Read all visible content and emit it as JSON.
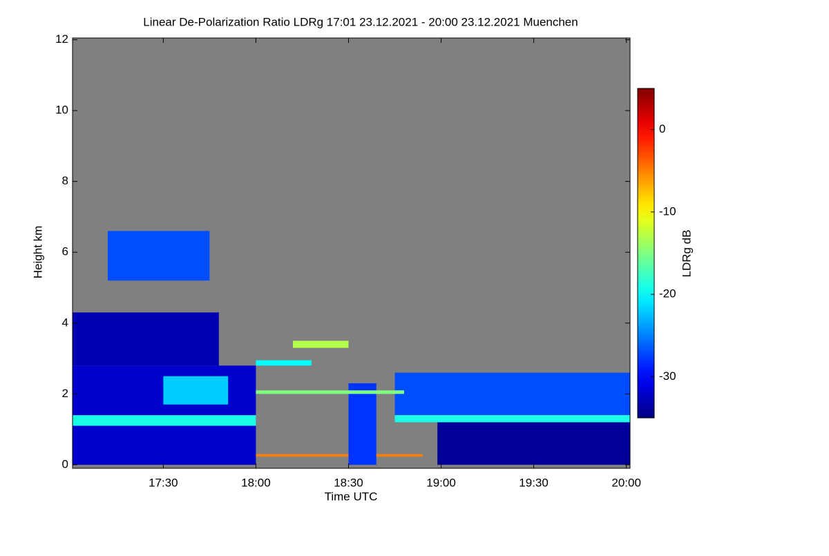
{
  "chart_data": {
    "type": "heatmap",
    "title": "Linear De-Polarization Ratio LDRg   17:01 23.12.2021 - 20:00 23.12.2021 Muenchen",
    "x_label": "Time UTC",
    "y_label": "Height km",
    "colorbar_label": "LDRg dB",
    "colormap": "jet",
    "background": "#808080",
    "xlim": [
      17.01,
      20.02
    ],
    "xticks": [
      {
        "value": 17.5,
        "label": "17:30"
      },
      {
        "value": 18,
        "label": "18:00"
      },
      {
        "value": 18.5,
        "label": "18:30"
      },
      {
        "value": 19,
        "label": "19:00"
      },
      {
        "value": 19.5,
        "label": "19:30"
      },
      {
        "value": 20,
        "label": "20:00"
      }
    ],
    "ylim": [
      -0.1,
      12.05
    ],
    "yticks": [
      0,
      2,
      4,
      6,
      8,
      10,
      12
    ],
    "clim": [
      -35,
      5
    ],
    "cticks": [
      0,
      -10,
      -20,
      -30
    ],
    "regions": [
      {
        "t": [
          17.01,
          18.0
        ],
        "h": [
          0,
          2.8
        ],
        "value": -32
      },
      {
        "t": [
          17.01,
          17.8
        ],
        "h": [
          2.8,
          4.3
        ],
        "value": -33
      },
      {
        "t": [
          17.5,
          17.85
        ],
        "h": [
          1.7,
          2.5
        ],
        "value": -22
      },
      {
        "t": [
          17.01,
          18.0
        ],
        "h": [
          1.1,
          1.4
        ],
        "value": -19
      },
      {
        "t": [
          17.2,
          17.75
        ],
        "h": [
          5.2,
          6.6
        ],
        "value": -27
      },
      {
        "t": [
          18.0,
          18.9
        ],
        "h": [
          0.23,
          0.3
        ],
        "value": -5
      },
      {
        "t": [
          18.5,
          18.65
        ],
        "h": [
          0,
          2.3
        ],
        "value": -28
      },
      {
        "t": [
          18.75,
          20.02
        ],
        "h": [
          1.4,
          2.6
        ],
        "value": -27
      },
      {
        "t": [
          18.98,
          20.02
        ],
        "h": [
          0,
          1.2
        ],
        "value": -34
      },
      {
        "t": [
          18.75,
          20.02
        ],
        "h": [
          1.2,
          1.4
        ],
        "value": -19
      },
      {
        "t": [
          18.0,
          18.8
        ],
        "h": [
          2.0,
          2.1
        ],
        "value": -15
      },
      {
        "t": [
          18.2,
          18.5
        ],
        "h": [
          3.3,
          3.5
        ],
        "value": -13
      },
      {
        "t": [
          18.0,
          18.3
        ],
        "h": [
          2.8,
          2.95
        ],
        "value": -20
      }
    ]
  }
}
